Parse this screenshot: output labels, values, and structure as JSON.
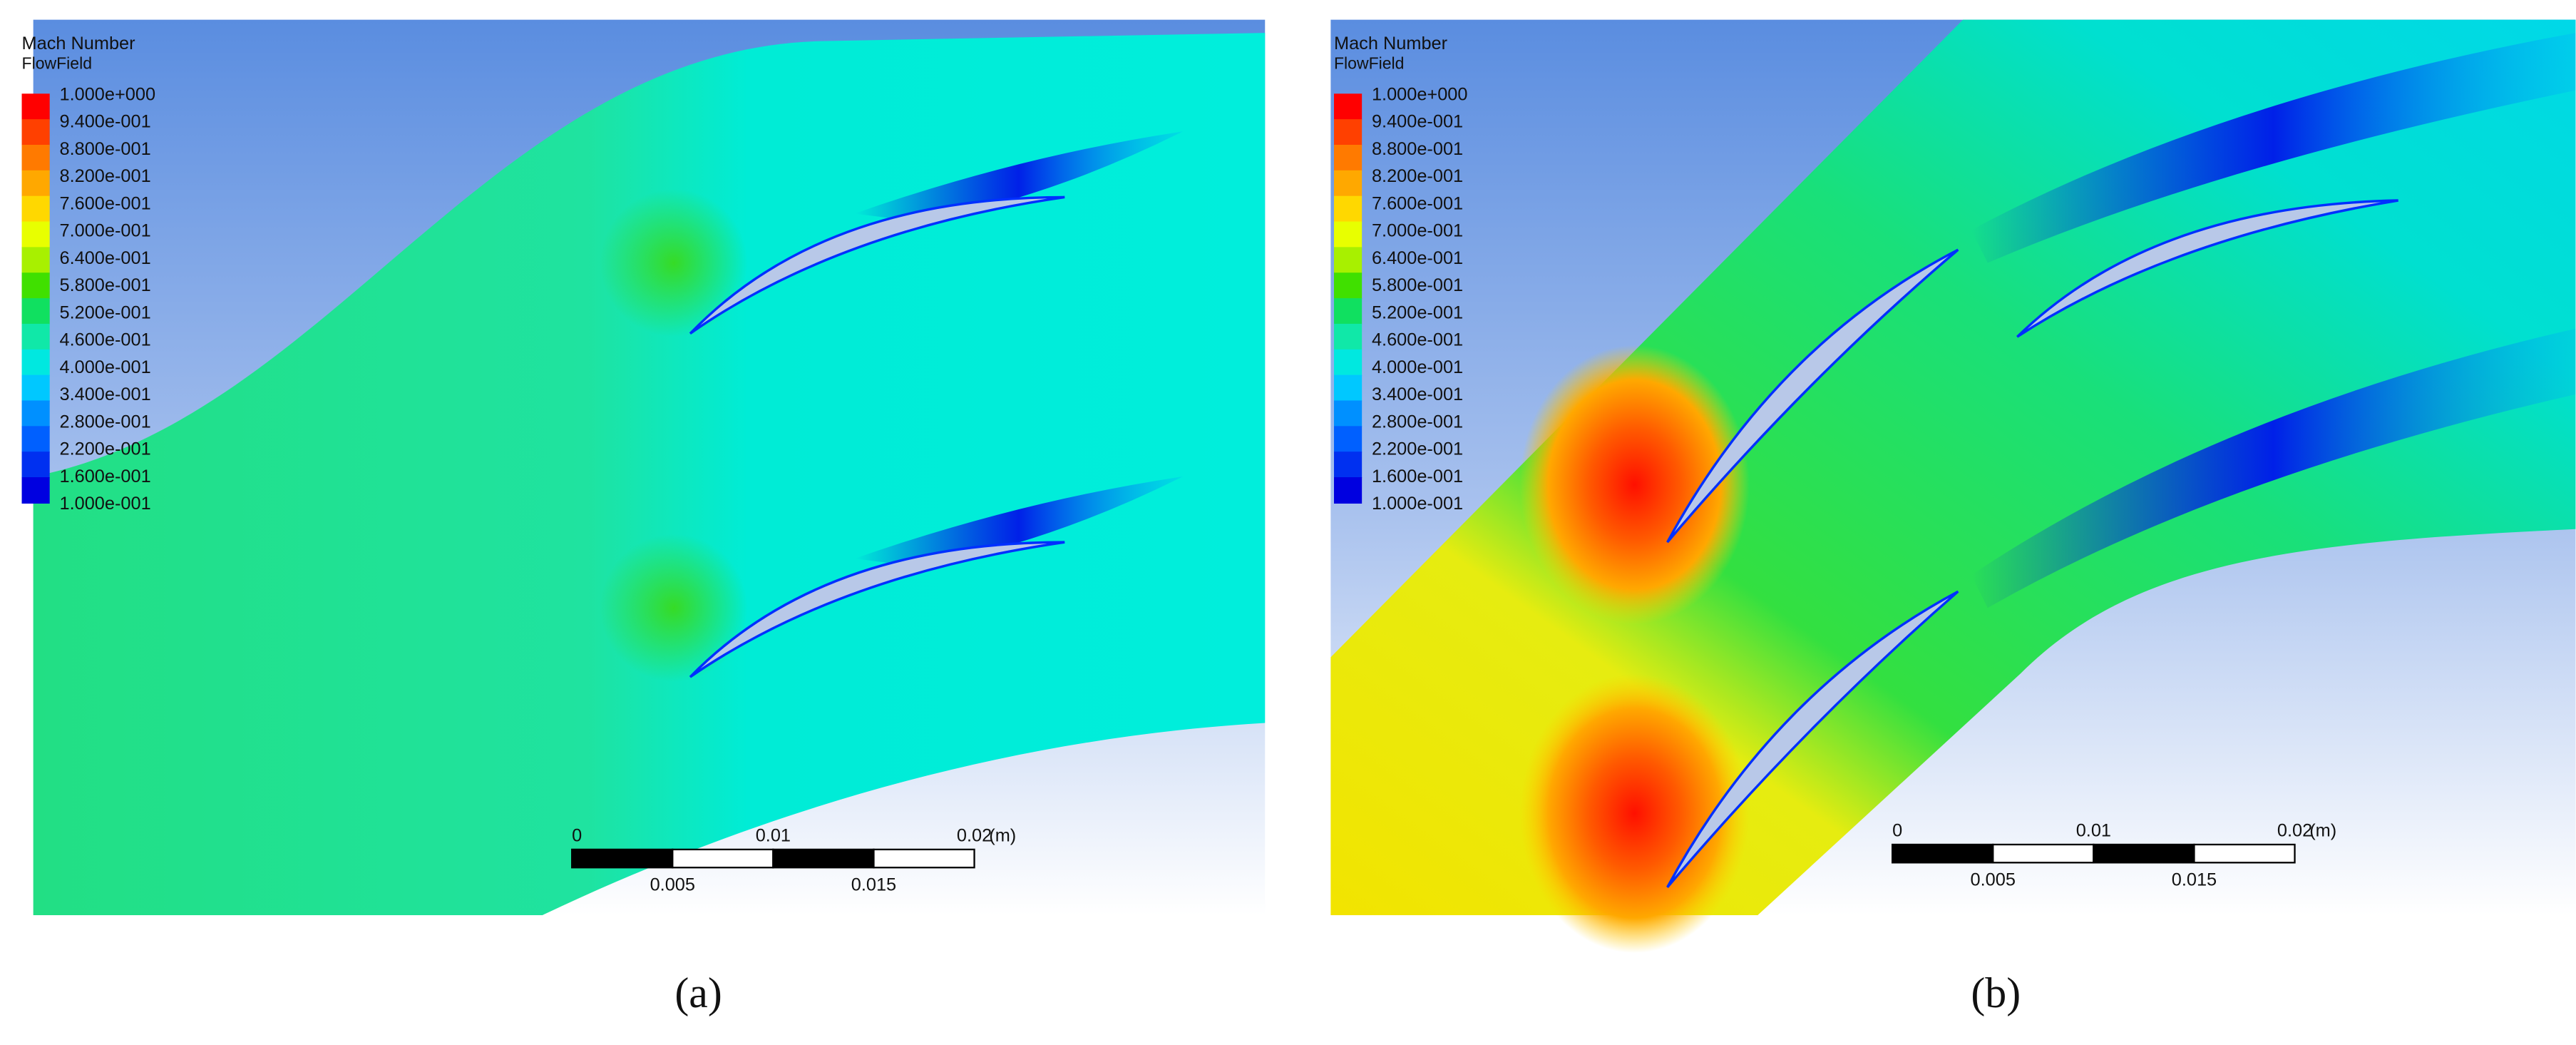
{
  "panels": [
    {
      "caption": "(a)",
      "legend": {
        "title": "Mach Number",
        "subtitle": "FlowField",
        "labels": [
          "1.000e+000",
          "9.400e-001",
          "8.800e-001",
          "8.200e-001",
          "7.600e-001",
          "7.000e-001",
          "6.400e-001",
          "5.800e-001",
          "5.200e-001",
          "4.600e-001",
          "4.000e-001",
          "3.400e-001",
          "2.800e-001",
          "2.200e-001",
          "1.600e-001",
          "1.000e-001"
        ]
      },
      "scale_bar": {
        "major_labels": [
          "0",
          "0.01",
          "0.02"
        ],
        "unit": "(m)",
        "minor_labels": [
          "0.005",
          "0.015"
        ]
      }
    },
    {
      "caption": "(b)",
      "legend": {
        "title": "Mach Number",
        "subtitle": "FlowField",
        "labels": [
          "1.000e+000",
          "9.400e-001",
          "8.800e-001",
          "8.200e-001",
          "7.600e-001",
          "7.000e-001",
          "6.400e-001",
          "5.800e-001",
          "5.200e-001",
          "4.600e-001",
          "4.000e-001",
          "3.400e-001",
          "2.800e-001",
          "2.200e-001",
          "1.600e-001",
          "1.000e-001"
        ]
      },
      "scale_bar": {
        "major_labels": [
          "0",
          "0.01",
          "0.02"
        ],
        "unit": "(m)",
        "minor_labels": [
          "0.005",
          "0.015"
        ]
      }
    }
  ]
}
